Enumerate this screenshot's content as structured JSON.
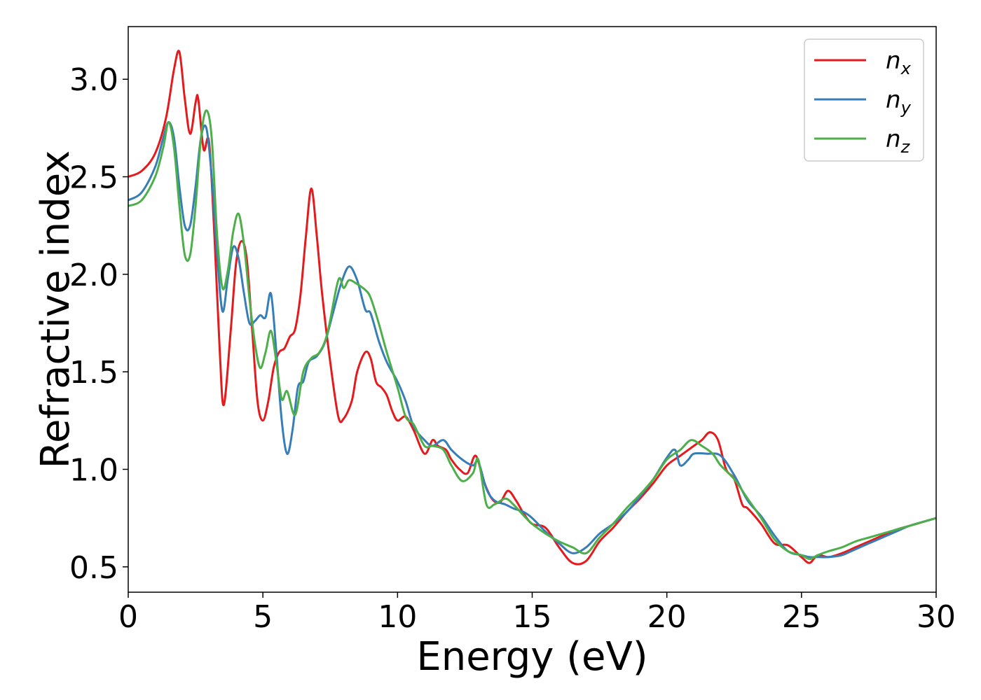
{
  "chart_data": {
    "type": "line",
    "title": "",
    "xlabel": "Energy (eV)",
    "ylabel": "Refractive index",
    "xlim": [
      0,
      30
    ],
    "ylim": [
      0.37,
      3.27
    ],
    "xticks": [
      0,
      5,
      10,
      15,
      20,
      25,
      30
    ],
    "xtick_labels": [
      "0",
      "5",
      "10",
      "15",
      "20",
      "25",
      "30"
    ],
    "yticks": [
      0.5,
      1.0,
      1.5,
      2.0,
      2.5,
      3.0
    ],
    "ytick_labels": [
      "0.5",
      "1.0",
      "1.5",
      "2.0",
      "2.5",
      "3.0"
    ],
    "grid": false,
    "legend_position": "top-right",
    "series": [
      {
        "name": "n",
        "subscript": "x",
        "color": "#e41a1c",
        "x": [
          0,
          0.5,
          1.0,
          1.4,
          1.7,
          1.9,
          2.1,
          2.3,
          2.5,
          2.6,
          2.8,
          3.0,
          3.2,
          3.4,
          3.55,
          3.8,
          4.0,
          4.2,
          4.4,
          4.6,
          4.8,
          5.0,
          5.2,
          5.4,
          5.6,
          5.8,
          6.0,
          6.2,
          6.4,
          6.6,
          6.8,
          7.0,
          7.2,
          7.5,
          7.8,
          8.0,
          8.3,
          8.5,
          8.8,
          9.0,
          9.2,
          9.4,
          9.6,
          9.8,
          10.0,
          10.3,
          10.6,
          11.0,
          11.3,
          11.5,
          11.8,
          12.0,
          12.3,
          12.6,
          12.9,
          13.2,
          13.5,
          13.8,
          14.1,
          14.4,
          14.7,
          15.0,
          15.5,
          16.0,
          16.5,
          17.0,
          17.5,
          18.0,
          18.5,
          19.0,
          19.5,
          20.0,
          20.5,
          21.0,
          21.3,
          21.6,
          21.9,
          22.2,
          22.5,
          22.8,
          23.0,
          23.5,
          24.0,
          24.5,
          25.0,
          25.3,
          25.6,
          26.0,
          26.5,
          27.0,
          27.5,
          28.0,
          28.5,
          29.0,
          29.5,
          30.0
        ],
        "values": [
          2.5,
          2.53,
          2.62,
          2.8,
          3.05,
          3.14,
          2.9,
          2.72,
          2.88,
          2.9,
          2.64,
          2.68,
          2.2,
          1.6,
          1.33,
          1.7,
          2.05,
          2.17,
          2.08,
          1.72,
          1.35,
          1.25,
          1.35,
          1.52,
          1.6,
          1.62,
          1.68,
          1.72,
          1.9,
          2.2,
          2.44,
          2.2,
          1.9,
          1.55,
          1.27,
          1.26,
          1.35,
          1.5,
          1.6,
          1.57,
          1.45,
          1.42,
          1.38,
          1.3,
          1.25,
          1.27,
          1.2,
          1.08,
          1.15,
          1.12,
          1.1,
          1.05,
          1.0,
          0.98,
          1.07,
          0.94,
          0.85,
          0.83,
          0.89,
          0.84,
          0.77,
          0.72,
          0.7,
          0.6,
          0.52,
          0.53,
          0.63,
          0.7,
          0.78,
          0.85,
          0.93,
          1.02,
          1.07,
          1.12,
          1.15,
          1.19,
          1.15,
          1.0,
          0.95,
          0.82,
          0.8,
          0.72,
          0.62,
          0.61,
          0.55,
          0.52,
          0.56,
          0.55,
          0.57,
          0.6,
          0.63,
          0.66,
          0.69,
          0.71,
          0.73,
          0.75
        ]
      },
      {
        "name": "n",
        "subscript": "y",
        "color": "#377eb8",
        "x": [
          0,
          0.5,
          1.0,
          1.3,
          1.5,
          1.7,
          1.9,
          2.1,
          2.3,
          2.5,
          2.7,
          2.9,
          3.1,
          3.3,
          3.5,
          3.7,
          3.9,
          4.1,
          4.3,
          4.5,
          4.7,
          4.9,
          5.1,
          5.3,
          5.5,
          5.7,
          5.9,
          6.1,
          6.3,
          6.5,
          6.7,
          7.0,
          7.3,
          7.6,
          7.9,
          8.2,
          8.5,
          8.8,
          9.0,
          9.3,
          9.6,
          10.0,
          10.3,
          10.6,
          11.0,
          11.3,
          11.7,
          12.0,
          12.4,
          12.8,
          13.0,
          13.3,
          13.6,
          14.0,
          14.3,
          14.7,
          15.0,
          15.5,
          16.0,
          16.5,
          17.0,
          17.5,
          18.0,
          18.5,
          19.0,
          19.5,
          20.0,
          20.3,
          20.5,
          20.8,
          21.0,
          21.5,
          22.0,
          22.5,
          23.0,
          23.5,
          24.0,
          24.5,
          25.0,
          25.3,
          25.6,
          26.0,
          26.5,
          27.0,
          27.5,
          28.0,
          28.5,
          29.0,
          29.5,
          30.0
        ],
        "values": [
          2.38,
          2.42,
          2.55,
          2.7,
          2.78,
          2.7,
          2.45,
          2.25,
          2.25,
          2.45,
          2.7,
          2.75,
          2.5,
          2.1,
          1.81,
          1.98,
          2.14,
          2.08,
          1.9,
          1.75,
          1.76,
          1.79,
          1.78,
          1.9,
          1.6,
          1.25,
          1.08,
          1.2,
          1.42,
          1.45,
          1.55,
          1.58,
          1.65,
          1.8,
          1.95,
          2.04,
          1.97,
          1.82,
          1.8,
          1.66,
          1.55,
          1.45,
          1.35,
          1.22,
          1.15,
          1.12,
          1.15,
          1.1,
          1.05,
          1.02,
          1.04,
          0.9,
          0.84,
          0.82,
          0.8,
          0.78,
          0.75,
          0.68,
          0.62,
          0.57,
          0.6,
          0.67,
          0.72,
          0.78,
          0.86,
          0.95,
          1.06,
          1.1,
          1.02,
          1.05,
          1.08,
          1.08,
          1.07,
          0.97,
          0.84,
          0.76,
          0.66,
          0.58,
          0.56,
          0.55,
          0.55,
          0.55,
          0.56,
          0.59,
          0.62,
          0.65,
          0.68,
          0.71,
          0.73,
          0.75
        ]
      },
      {
        "name": "n",
        "subscript": "z",
        "color": "#4daf4a",
        "x": [
          0,
          0.5,
          1.0,
          1.3,
          1.5,
          1.7,
          1.9,
          2.1,
          2.3,
          2.5,
          2.7,
          2.9,
          3.1,
          3.3,
          3.5,
          3.7,
          3.9,
          4.1,
          4.3,
          4.5,
          4.7,
          4.9,
          5.1,
          5.3,
          5.5,
          5.7,
          5.9,
          6.2,
          6.5,
          6.8,
          7.1,
          7.4,
          7.8,
          8.0,
          8.2,
          8.5,
          8.8,
          9.0,
          9.3,
          9.6,
          10.0,
          10.3,
          10.6,
          11.0,
          11.3,
          11.7,
          12.0,
          12.4,
          12.8,
          13.0,
          13.3,
          13.6,
          14.0,
          14.3,
          14.7,
          15.0,
          15.5,
          16.0,
          16.5,
          17.0,
          17.5,
          18.0,
          18.5,
          19.0,
          19.5,
          20.0,
          20.5,
          20.9,
          21.3,
          21.7,
          22.0,
          22.5,
          23.0,
          23.5,
          24.0,
          24.5,
          25.0,
          25.3,
          25.6,
          26.0,
          26.5,
          27.0,
          27.5,
          28.0,
          28.5,
          29.0,
          29.5,
          30.0
        ],
        "values": [
          2.35,
          2.38,
          2.5,
          2.65,
          2.78,
          2.65,
          2.35,
          2.1,
          2.1,
          2.35,
          2.7,
          2.84,
          2.7,
          2.2,
          1.93,
          2.02,
          2.22,
          2.31,
          2.15,
          1.88,
          1.65,
          1.52,
          1.6,
          1.71,
          1.55,
          1.36,
          1.4,
          1.28,
          1.5,
          1.57,
          1.6,
          1.7,
          1.97,
          1.93,
          1.97,
          1.95,
          1.92,
          1.88,
          1.75,
          1.6,
          1.42,
          1.27,
          1.23,
          1.12,
          1.12,
          1.1,
          1.02,
          0.94,
          0.98,
          1.05,
          0.82,
          0.82,
          0.85,
          0.82,
          0.76,
          0.72,
          0.67,
          0.63,
          0.6,
          0.57,
          0.65,
          0.72,
          0.8,
          0.87,
          0.95,
          1.05,
          1.1,
          1.15,
          1.12,
          1.08,
          1.02,
          0.95,
          0.85,
          0.75,
          0.64,
          0.58,
          0.56,
          0.54,
          0.56,
          0.58,
          0.6,
          0.63,
          0.65,
          0.67,
          0.69,
          0.71,
          0.73,
          0.75
        ]
      }
    ]
  }
}
